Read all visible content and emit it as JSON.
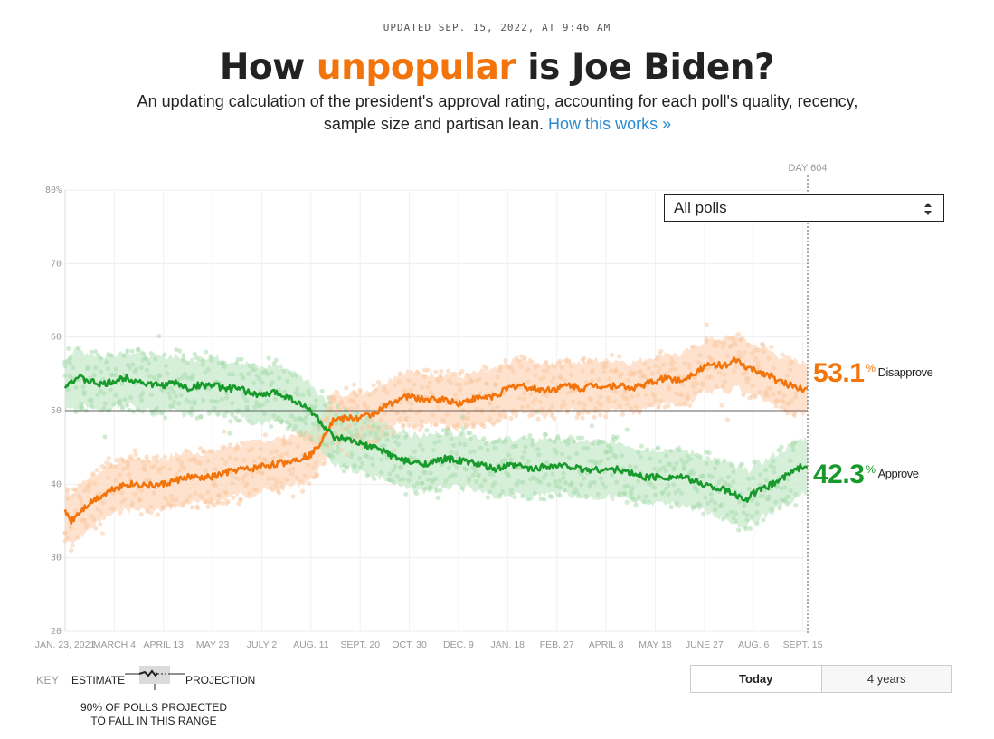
{
  "header": {
    "updated": "UPDATED SEP. 15, 2022, AT 9:46 AM",
    "title_pre": "How ",
    "title_hl": "unpopular",
    "title_post": " is Joe Biden?",
    "subtitle": "An updating calculation of the president's approval rating, accounting for each poll's quality, recency, sample size and partisan lean.",
    "link": "How this works »"
  },
  "controls": {
    "poll_filter": "All polls",
    "toggle": [
      "Today",
      "4 years"
    ],
    "toggle_active": "Today"
  },
  "key": {
    "label": "KEY",
    "estimate": "ESTIMATE",
    "projection": "PROJECTION",
    "note": "90% OF POLLS PROJECTED TO FALL IN THIS RANGE"
  },
  "colors": {
    "disapprove": "#f2740b",
    "approve": "#179a2b"
  },
  "chart_data": {
    "type": "line",
    "ylim": [
      20,
      80
    ],
    "yticks": [
      "80%",
      "70",
      "60",
      "50",
      "40",
      "30",
      "20"
    ],
    "ytick_values": [
      80,
      70,
      60,
      50,
      40,
      30,
      20
    ],
    "xlim": [
      0,
      604
    ],
    "xticks": [
      {
        "day": 0,
        "label": "JAN. 23, 2021"
      },
      {
        "day": 40,
        "label": "MARCH 4"
      },
      {
        "day": 80,
        "label": "APRIL 13"
      },
      {
        "day": 120,
        "label": "MAY 23"
      },
      {
        "day": 160,
        "label": "JULY 2"
      },
      {
        "day": 200,
        "label": "AUG. 11"
      },
      {
        "day": 240,
        "label": "SEPT. 20"
      },
      {
        "day": 280,
        "label": "OCT. 30"
      },
      {
        "day": 320,
        "label": "DEC. 9"
      },
      {
        "day": 360,
        "label": "JAN. 18"
      },
      {
        "day": 400,
        "label": "FEB. 27"
      },
      {
        "day": 440,
        "label": "APRIL 8"
      },
      {
        "day": 480,
        "label": "MAY 18"
      },
      {
        "day": 520,
        "label": "JUNE 27"
      },
      {
        "day": 560,
        "label": "AUG. 6"
      },
      {
        "day": 600,
        "label": "SEPT. 15"
      }
    ],
    "reference_line": 50,
    "day_marker": {
      "day": 604,
      "label": "DAY 604"
    },
    "series": [
      {
        "name": "Disapprove",
        "final": "53.1",
        "days": [
          0,
          5,
          10,
          20,
          30,
          40,
          50,
          60,
          70,
          80,
          90,
          100,
          110,
          120,
          130,
          140,
          150,
          160,
          170,
          180,
          190,
          200,
          205,
          210,
          215,
          220,
          225,
          230,
          240,
          250,
          260,
          270,
          280,
          290,
          300,
          310,
          320,
          330,
          340,
          350,
          360,
          370,
          380,
          390,
          400,
          410,
          420,
          430,
          440,
          450,
          460,
          470,
          480,
          490,
          500,
          510,
          520,
          530,
          540,
          545,
          550,
          555,
          560,
          570,
          580,
          590,
          600,
          604
        ],
        "values": [
          36.5,
          35,
          36,
          37.5,
          38.5,
          39.5,
          40,
          40,
          39.8,
          40,
          40.5,
          41,
          40.8,
          41,
          41.5,
          42,
          42,
          42.5,
          42.7,
          43,
          43.5,
          44,
          45,
          46.5,
          48,
          49,
          48.8,
          49,
          49,
          49.5,
          50.5,
          51.5,
          52,
          51.5,
          51.5,
          51.5,
          51,
          51.5,
          51.8,
          52,
          53,
          53.5,
          53,
          52.8,
          53,
          53.5,
          53,
          53.5,
          53.3,
          53.5,
          53,
          53.5,
          54,
          54.5,
          54,
          55,
          56,
          56.3,
          56,
          57,
          56.3,
          55.8,
          55.5,
          55,
          54,
          53.5,
          53,
          53.1
        ],
        "band": 3.5
      },
      {
        "name": "Approve",
        "final": "42.3",
        "days": [
          0,
          5,
          10,
          20,
          30,
          40,
          50,
          60,
          70,
          80,
          90,
          100,
          110,
          120,
          130,
          140,
          150,
          160,
          170,
          180,
          190,
          200,
          205,
          210,
          215,
          220,
          225,
          230,
          240,
          250,
          260,
          270,
          280,
          290,
          300,
          310,
          320,
          330,
          340,
          350,
          360,
          370,
          380,
          390,
          400,
          410,
          420,
          430,
          440,
          450,
          460,
          470,
          480,
          490,
          500,
          510,
          520,
          530,
          540,
          545,
          550,
          555,
          560,
          570,
          580,
          590,
          600,
          604
        ],
        "values": [
          53.5,
          54,
          54.5,
          54,
          53.5,
          54,
          54.5,
          54,
          53.5,
          53.5,
          53.8,
          53,
          53.5,
          53.5,
          53,
          53,
          52.5,
          52,
          52.5,
          52,
          51,
          50,
          49,
          48,
          47,
          46,
          46.2,
          46,
          45.5,
          45,
          44.5,
          43.5,
          43,
          42.8,
          43,
          43.5,
          43.2,
          43,
          42.5,
          42,
          42.5,
          42.5,
          42,
          42.5,
          42.5,
          42.5,
          42,
          42,
          42,
          42,
          41.5,
          41,
          41,
          41,
          41,
          40.5,
          40,
          39.5,
          39,
          38.5,
          38.2,
          38,
          38.8,
          39.5,
          40.5,
          41.5,
          42.5,
          42.3
        ],
        "band": 3.8
      }
    ]
  }
}
